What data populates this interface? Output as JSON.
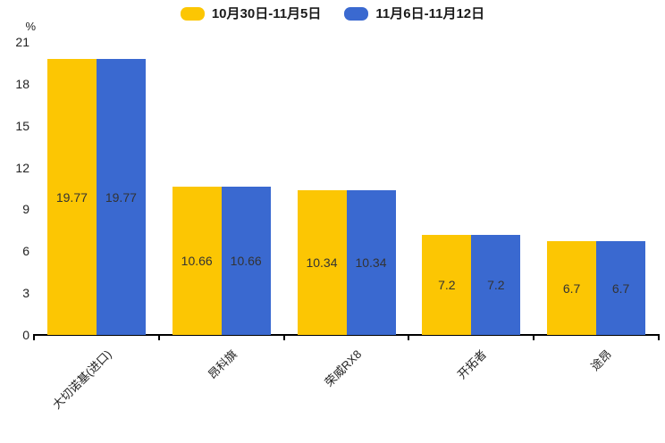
{
  "chart_data": {
    "type": "bar",
    "categories": [
      "大切诺基(进口)",
      "昂科旗",
      "荣威RX8",
      "开拓者",
      "途昂"
    ],
    "series": [
      {
        "name": "10月30日-11月5日",
        "color": "#FCC603",
        "values": [
          19.77,
          10.66,
          10.34,
          7.2,
          6.7
        ]
      },
      {
        "name": "11月6日-11月12日",
        "color": "#3A69D0",
        "values": [
          19.77,
          10.66,
          10.34,
          7.2,
          6.7
        ]
      }
    ],
    "ylabel": "%",
    "yticks": [
      0,
      3,
      6,
      9,
      12,
      15,
      18,
      21
    ],
    "ylim": [
      0,
      21
    ],
    "grid": false,
    "legend_position": "top-center",
    "value_labels": "inside-center",
    "axis_color": "#000000",
    "value_label_color": "#333333"
  }
}
